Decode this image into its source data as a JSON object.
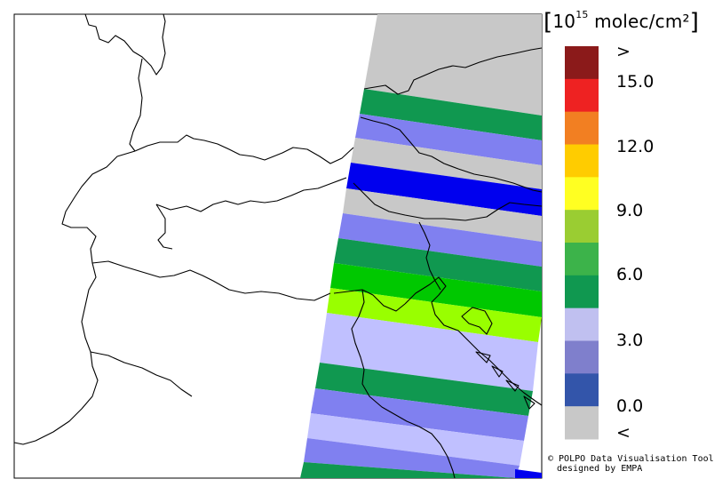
{
  "colorbar": {
    "unit_prefix": "[",
    "unit_base": "10",
    "unit_exponent": "15",
    "unit_text": " molec/cm²",
    "unit_suffix": "]",
    "labels": [
      ">",
      "15.0",
      "12.0",
      "9.0",
      "6.0",
      "3.0",
      "0.0",
      "<"
    ],
    "bins": [
      {
        "value": "over",
        "color": "#8b1a1a"
      },
      {
        "value": 16.5,
        "color": "#ee2222"
      },
      {
        "value": 13.5,
        "color": "#f27f22"
      },
      {
        "value": 12.0,
        "color": "#ffcc00"
      },
      {
        "value": 9.75,
        "color": "#ffff22"
      },
      {
        "value": 8.25,
        "color": "#9acd32"
      },
      {
        "value": 6.75,
        "color": "#3cb34a"
      },
      {
        "value": 5.25,
        "color": "#109850"
      },
      {
        "value": 3.75,
        "color": "#c0c0f0"
      },
      {
        "value": 2.25,
        "color": "#7f7fcc"
      },
      {
        "value": 0.75,
        "color": "#3355aa"
      },
      {
        "value": "under",
        "color": "#c8c8c8"
      }
    ]
  },
  "swath_colors": {
    "gray": "#c8c8c8",
    "dark_green": "#109850",
    "periwinkle": "#8080f0",
    "blue": "#0000ee",
    "green": "#00c800",
    "yellow_green": "#99ff00",
    "lavender": "#c0c0ff"
  },
  "credit": {
    "line1": "© POLPO Data Visualisation Tool",
    "line2": "designed by EMPA"
  }
}
